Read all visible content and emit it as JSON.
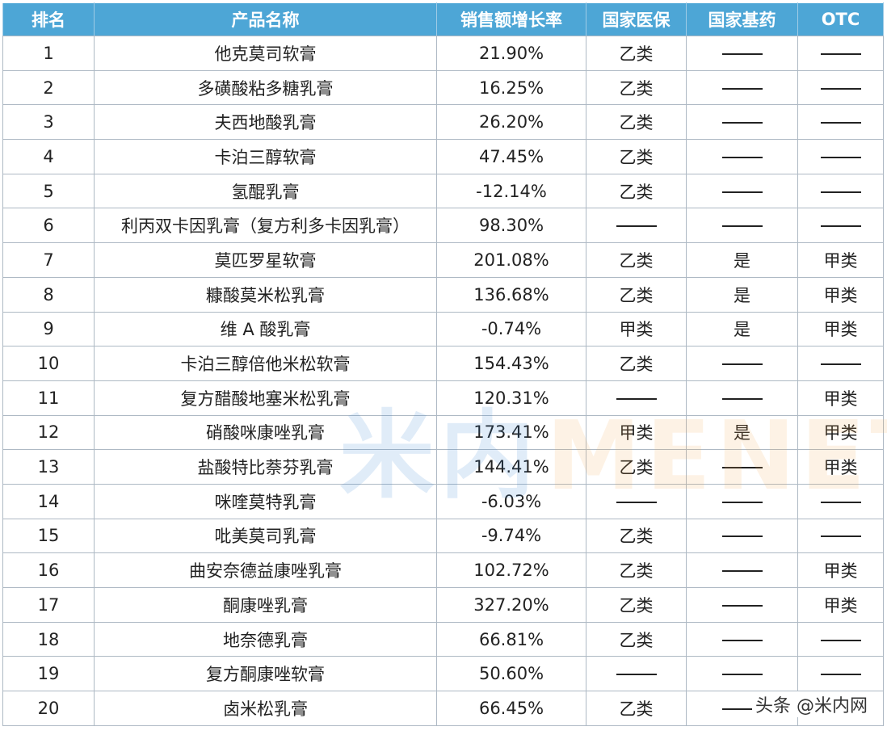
{
  "table": {
    "headers": [
      "排名",
      "产品名称",
      "销售额增长率",
      "国家医保",
      "国家基药",
      "OTC"
    ],
    "dash": "——",
    "rows": [
      [
        "1",
        "他克莫司软膏",
        "21.90%",
        "乙类",
        "——",
        "——"
      ],
      [
        "2",
        "多磺酸粘多糖乳膏",
        "16.25%",
        "乙类",
        "——",
        "——"
      ],
      [
        "3",
        "夫西地酸乳膏",
        "26.20%",
        "乙类",
        "——",
        "——"
      ],
      [
        "4",
        "卡泊三醇软膏",
        "47.45%",
        "乙类",
        "——",
        "——"
      ],
      [
        "5",
        "氢醌乳膏",
        "-12.14%",
        "乙类",
        "——",
        "——"
      ],
      [
        "6",
        "利丙双卡因乳膏（复方利多卡因乳膏）",
        "98.30%",
        "——",
        "——",
        "——"
      ],
      [
        "7",
        "莫匹罗星软膏",
        "201.08%",
        "乙类",
        "是",
        "甲类"
      ],
      [
        "8",
        "糠酸莫米松乳膏",
        "136.68%",
        "乙类",
        "是",
        "甲类"
      ],
      [
        "9",
        "维 A 酸乳膏",
        "-0.74%",
        "甲类",
        "是",
        "甲类"
      ],
      [
        "10",
        "卡泊三醇倍他米松软膏",
        "154.43%",
        "乙类",
        "——",
        "——"
      ],
      [
        "11",
        "复方醋酸地塞米松乳膏",
        "120.31%",
        "——",
        "——",
        "甲类"
      ],
      [
        "12",
        "硝酸咪康唑乳膏",
        "173.41%",
        "甲类",
        "是",
        "甲类"
      ],
      [
        "13",
        "盐酸特比萘芬乳膏",
        "144.41%",
        "乙类",
        "——",
        "甲类"
      ],
      [
        "14",
        "咪喹莫特乳膏",
        "-6.03%",
        "——",
        "——",
        "——"
      ],
      [
        "15",
        "吡美莫司乳膏",
        "-9.74%",
        "乙类",
        "——",
        "——"
      ],
      [
        "16",
        "曲安奈德益康唑乳膏",
        "102.72%",
        "乙类",
        "——",
        "甲类"
      ],
      [
        "17",
        "酮康唑乳膏",
        "327.20%",
        "乙类",
        "——",
        "甲类"
      ],
      [
        "18",
        "地奈德乳膏",
        "66.81%",
        "乙类",
        "——",
        "——"
      ],
      [
        "19",
        "复方酮康唑软膏",
        "50.60%",
        "——",
        "——",
        "——"
      ],
      [
        "20",
        "卤米松乳膏",
        "66.45%",
        "乙类",
        "——",
        "——"
      ]
    ]
  },
  "watermark": {
    "cn": "米内",
    "en": "MENET"
  },
  "credit": "头条 @米内网",
  "colors": {
    "header_bg": "#4da6d6",
    "header_text": "#ffffff",
    "border": "#aeb9c4",
    "text": "#222222"
  }
}
